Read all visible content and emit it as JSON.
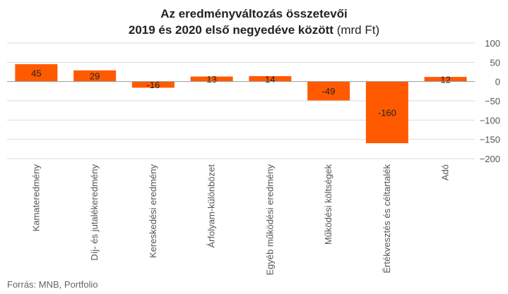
{
  "title_line1": "Az eredményváltozás összetevői",
  "title_line2_bold": "2019 és 2020 első negyedéve között",
  "title_line2_unit": "(mrd Ft)",
  "source": "Forrás: MNB, Portfolio",
  "colors": {
    "bar": "#ff5a00",
    "grid": "#d9d9d9",
    "axis_text": "#555555",
    "label_text": "#222222"
  },
  "chart_data": {
    "type": "bar",
    "categories": [
      "Kamateredmény",
      "Díj- és jutalékeredmény",
      "Kereskedési eredmény",
      "Árfolyam-különbözet",
      "Egyéb működési eredmény",
      "Működési költségek",
      "Értékvesztés és céltartalék",
      "Adó"
    ],
    "values": [
      45,
      29,
      -16,
      13,
      14,
      -49,
      -160,
      12
    ],
    "ylim": [
      -200,
      100
    ],
    "yticks": [
      100,
      50,
      0,
      -50,
      -100,
      -150,
      -200
    ],
    "ytick_labels": [
      "100",
      "50",
      "0",
      "−50",
      "−100",
      "−150",
      "−200"
    ],
    "yaxis_position": "right",
    "grid": true
  }
}
